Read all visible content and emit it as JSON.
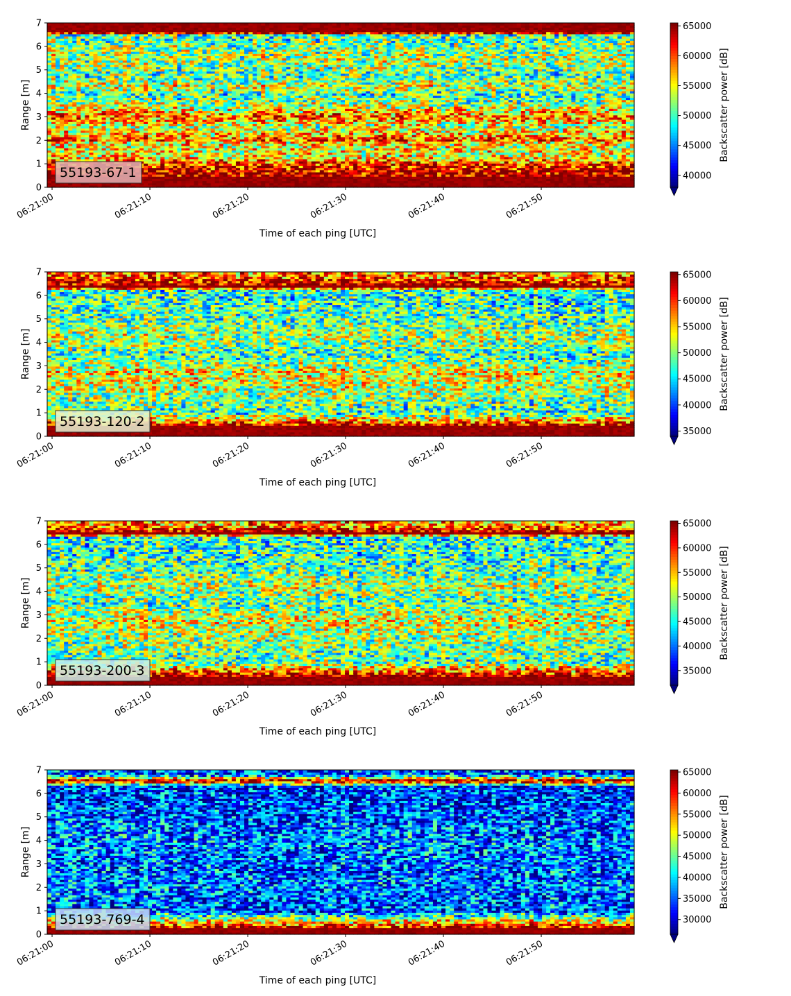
{
  "chart_data": [
    {
      "type": "heatmap",
      "label": "55193-67-1",
      "badge_color": "#e3b4b6",
      "xlabel": "Time of each ping [UTC]",
      "ylabel": "Range [m]",
      "x_ticks": [
        "06:21:00",
        "06:21:10",
        "06:21:20",
        "06:21:30",
        "06:21:40",
        "06:21:50"
      ],
      "x_range_seconds": [
        0,
        60
      ],
      "y_ticks": [
        "0",
        "1",
        "2",
        "3",
        "4",
        "5",
        "6",
        "7"
      ],
      "ylim": [
        0,
        7
      ],
      "colorbar": {
        "label": "Backscatter power [dB]",
        "colormap": "jet",
        "extend": "min",
        "range": [
          38000,
          65500
        ],
        "ticks": [
          "40000",
          "45000",
          "50000",
          "55000",
          "60000",
          "65000"
        ],
        "tick_values": [
          40000,
          45000,
          50000,
          55000,
          60000,
          65000
        ]
      },
      "profile": [
        [
          0.25,
          1.0
        ],
        [
          1.0,
          0.85
        ],
        [
          1.3,
          0.62
        ],
        [
          1.9,
          0.62
        ],
        [
          2.0,
          0.82
        ],
        [
          2.2,
          0.7
        ],
        [
          2.6,
          0.55
        ],
        [
          3.0,
          0.78
        ],
        [
          3.5,
          0.55
        ],
        [
          4.0,
          0.42
        ],
        [
          4.3,
          0.6
        ],
        [
          4.7,
          0.45
        ],
        [
          5.5,
          0.55
        ],
        [
          6.5,
          0.45
        ],
        [
          6.6,
          1.0
        ]
      ]
    },
    {
      "type": "heatmap",
      "label": "55193-120-2",
      "badge_color": "#e6f2d2",
      "xlabel": "Time of each ping [UTC]",
      "ylabel": "Range [m]",
      "x_ticks": [
        "06:21:00",
        "06:21:10",
        "06:21:20",
        "06:21:30",
        "06:21:40",
        "06:21:50"
      ],
      "x_range_seconds": [
        0,
        60
      ],
      "y_ticks": [
        "0",
        "1",
        "2",
        "3",
        "4",
        "5",
        "6",
        "7"
      ],
      "ylim": [
        0,
        7
      ],
      "colorbar": {
        "label": "Backscatter power [dB]",
        "colormap": "jet",
        "extend": "min",
        "range": [
          34000,
          65500
        ],
        "ticks": [
          "35000",
          "40000",
          "45000",
          "50000",
          "55000",
          "60000",
          "65000"
        ],
        "tick_values": [
          35000,
          40000,
          45000,
          50000,
          55000,
          60000,
          65000
        ]
      },
      "profile": [
        [
          0.4,
          1.0
        ],
        [
          1.0,
          0.42
        ],
        [
          2.0,
          0.55
        ],
        [
          2.7,
          0.62
        ],
        [
          3.5,
          0.42
        ],
        [
          4.2,
          0.55
        ],
        [
          5.0,
          0.45
        ],
        [
          6.2,
          0.4
        ],
        [
          6.4,
          1.0
        ],
        [
          6.8,
          0.75
        ]
      ]
    },
    {
      "type": "heatmap",
      "label": "55193-200-3",
      "badge_color": "#cdf0ea",
      "xlabel": "Time of each ping [UTC]",
      "ylabel": "Range [m]",
      "x_ticks": [
        "06:21:00",
        "06:21:10",
        "06:21:20",
        "06:21:30",
        "06:21:40",
        "06:21:50"
      ],
      "x_range_seconds": [
        0,
        60
      ],
      "y_ticks": [
        "0",
        "1",
        "2",
        "3",
        "4",
        "5",
        "6",
        "7"
      ],
      "ylim": [
        0,
        7
      ],
      "colorbar": {
        "label": "Backscatter power [dB]",
        "colormap": "jet",
        "extend": "min",
        "range": [
          32000,
          65500
        ],
        "ticks": [
          "35000",
          "40000",
          "45000",
          "50000",
          "55000",
          "60000",
          "65000"
        ],
        "tick_values": [
          35000,
          40000,
          45000,
          50000,
          55000,
          60000,
          65000
        ]
      },
      "profile": [
        [
          0.35,
          1.0
        ],
        [
          1.0,
          0.45
        ],
        [
          2.0,
          0.52
        ],
        [
          2.8,
          0.6
        ],
        [
          3.5,
          0.45
        ],
        [
          4.2,
          0.55
        ],
        [
          5.0,
          0.45
        ],
        [
          6.3,
          0.4
        ],
        [
          6.5,
          1.0
        ],
        [
          6.8,
          0.72
        ]
      ]
    },
    {
      "type": "heatmap",
      "label": "55193-769-4",
      "badge_color": "#c4dcf6",
      "xlabel": "Time of each ping [UTC]",
      "ylabel": "Range [m]",
      "x_ticks": [
        "06:21:00",
        "06:21:10",
        "06:21:20",
        "06:21:30",
        "06:21:40",
        "06:21:50"
      ],
      "x_range_seconds": [
        0,
        60
      ],
      "y_ticks": [
        "0",
        "1",
        "2",
        "3",
        "4",
        "5",
        "6",
        "7"
      ],
      "ylim": [
        0,
        7
      ],
      "colorbar": {
        "label": "Backscatter power [dB]",
        "colormap": "jet",
        "extend": "min",
        "range": [
          26500,
          65500
        ],
        "ticks": [
          "30000",
          "35000",
          "40000",
          "45000",
          "50000",
          "55000",
          "60000",
          "65000"
        ],
        "tick_values": [
          30000,
          35000,
          40000,
          45000,
          50000,
          55000,
          60000,
          65000
        ]
      },
      "profile": [
        [
          0.2,
          1.0
        ],
        [
          1.0,
          0.2
        ],
        [
          2.0,
          0.24
        ],
        [
          3.0,
          0.22
        ],
        [
          4.0,
          0.26
        ],
        [
          5.0,
          0.2
        ],
        [
          6.3,
          0.16
        ],
        [
          6.55,
          1.0
        ],
        [
          6.8,
          0.2
        ]
      ]
    }
  ]
}
